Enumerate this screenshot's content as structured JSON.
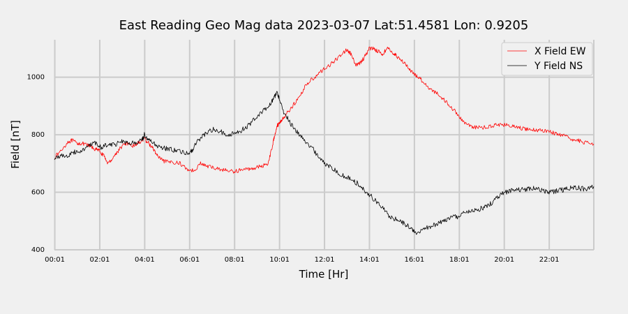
{
  "chart_data": {
    "type": "line",
    "title": "East Reading Geo Mag data        2023-03-07      Lat:51.4581  Lon: 0.9205",
    "xlabel": "Time  [Hr]",
    "ylabel": "Field  [nT]",
    "xlim": [
      0.0,
      24.0
    ],
    "ylim": [
      400,
      1130
    ],
    "x_ticks": [
      {
        "value": 0.0167,
        "label": "00:01"
      },
      {
        "value": 2.0167,
        "label": "02:01"
      },
      {
        "value": 4.0167,
        "label": "04:01"
      },
      {
        "value": 6.0167,
        "label": "06:01"
      },
      {
        "value": 8.0167,
        "label": "08:01"
      },
      {
        "value": 10.0167,
        "label": "10:01"
      },
      {
        "value": 12.0167,
        "label": "12:01"
      },
      {
        "value": 14.0167,
        "label": "14:01"
      },
      {
        "value": 16.0167,
        "label": "16:01"
      },
      {
        "value": 18.0167,
        "label": "18:01"
      },
      {
        "value": 20.0167,
        "label": "20:01"
      },
      {
        "value": 22.0167,
        "label": "22:01"
      }
    ],
    "y_ticks": [
      400,
      600,
      800,
      1000
    ],
    "grid": true,
    "legend": "top-right",
    "series": [
      {
        "name": "X Field EW",
        "color": "#ff0000",
        "x": [
          0.0,
          0.3,
          0.6,
          0.8,
          1.0,
          1.2,
          1.4,
          1.6,
          1.8,
          2.0,
          2.2,
          2.4,
          2.6,
          2.8,
          3.0,
          3.2,
          3.4,
          3.6,
          3.8,
          4.0,
          4.2,
          4.4,
          4.6,
          4.8,
          5.0,
          5.3,
          5.6,
          5.9,
          6.2,
          6.5,
          6.8,
          7.1,
          7.4,
          7.7,
          8.0,
          8.3,
          8.6,
          8.9,
          9.2,
          9.5,
          9.7,
          9.8,
          9.9,
          10.0,
          10.1,
          10.3,
          10.6,
          10.9,
          11.2,
          11.5,
          11.8,
          12.1,
          12.4,
          12.7,
          13.0,
          13.2,
          13.4,
          13.6,
          13.8,
          14.0,
          14.2,
          14.4,
          14.6,
          14.8,
          15.0,
          15.2,
          15.4,
          15.6,
          15.8,
          16.0,
          16.2,
          16.4,
          16.7,
          17.0,
          17.3,
          17.6,
          17.9,
          18.2,
          18.5,
          18.8,
          19.1,
          19.4,
          19.7,
          20.0,
          20.3,
          20.6,
          20.9,
          21.2,
          21.5,
          21.8,
          22.1,
          22.4,
          22.7,
          23.0,
          23.3,
          23.6,
          24.0
        ],
        "y": [
          720,
          745,
          775,
          780,
          770,
          770,
          765,
          760,
          750,
          745,
          725,
          700,
          720,
          740,
          760,
          770,
          760,
          765,
          775,
          785,
          770,
          750,
          725,
          710,
          705,
          705,
          700,
          680,
          675,
          700,
          690,
          685,
          680,
          675,
          672,
          678,
          680,
          685,
          690,
          700,
          760,
          800,
          830,
          840,
          850,
          870,
          900,
          930,
          975,
          995,
          1015,
          1035,
          1050,
          1075,
          1095,
          1080,
          1040,
          1050,
          1070,
          1100,
          1100,
          1090,
          1080,
          1100,
          1090,
          1075,
          1060,
          1050,
          1025,
          1010,
          1000,
          985,
          960,
          945,
          925,
          900,
          875,
          845,
          830,
          825,
          825,
          830,
          835,
          835,
          830,
          825,
          820,
          818,
          815,
          815,
          810,
          800,
          795,
          785,
          780,
          772,
          768
        ]
      },
      {
        "name": "Y Field NS",
        "color": "#000000",
        "x": [
          0.0,
          0.3,
          0.6,
          0.9,
          1.2,
          1.5,
          1.8,
          2.1,
          2.4,
          2.7,
          3.0,
          3.3,
          3.6,
          3.9,
          4.0,
          4.2,
          4.5,
          4.8,
          5.1,
          5.4,
          5.7,
          6.0,
          6.2,
          6.5,
          6.8,
          7.1,
          7.4,
          7.7,
          8.0,
          8.3,
          8.6,
          8.9,
          9.2,
          9.5,
          9.7,
          9.9,
          10.0,
          10.2,
          10.5,
          10.8,
          11.1,
          11.4,
          11.7,
          12.0,
          12.3,
          12.6,
          12.9,
          13.2,
          13.5,
          13.8,
          14.1,
          14.4,
          14.7,
          15.0,
          15.3,
          15.6,
          15.9,
          16.1,
          16.4,
          16.7,
          17.0,
          17.3,
          17.6,
          17.9,
          18.2,
          18.5,
          18.8,
          19.1,
          19.4,
          19.7,
          20.0,
          20.3,
          20.6,
          20.9,
          21.2,
          21.5,
          21.8,
          22.1,
          22.4,
          22.7,
          23.0,
          23.3,
          23.6,
          24.0
        ],
        "y": [
          715,
          730,
          725,
          740,
          745,
          760,
          770,
          755,
          770,
          765,
          780,
          770,
          770,
          780,
          800,
          780,
          765,
          755,
          750,
          745,
          740,
          730,
          755,
          790,
          810,
          820,
          810,
          800,
          805,
          815,
          830,
          855,
          880,
          895,
          920,
          945,
          930,
          880,
          840,
          810,
          780,
          760,
          730,
          700,
          690,
          670,
          655,
          645,
          630,
          605,
          585,
          560,
          535,
          510,
          505,
          490,
          470,
          460,
          470,
          480,
          490,
          500,
          510,
          515,
          525,
          535,
          540,
          545,
          560,
          580,
          600,
          605,
          610,
          610,
          615,
          610,
          605,
          600,
          605,
          610,
          615,
          615,
          610,
          620
        ]
      }
    ]
  }
}
